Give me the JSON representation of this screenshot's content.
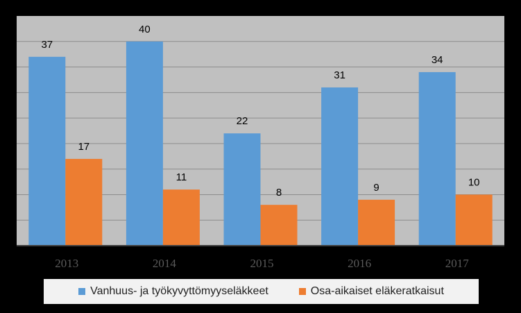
{
  "chart_data": {
    "type": "bar",
    "categories": [
      "2013",
      "2014",
      "2015",
      "2016",
      "2017"
    ],
    "series": [
      {
        "name": "Vanhuus- ja työkyvyttömyyseläkkeet",
        "values": [
          37,
          40,
          22,
          31,
          34
        ],
        "color": "#5b9bd5"
      },
      {
        "name": "Osa-aikaiset eläkeratkaisut",
        "values": [
          17,
          11,
          8,
          9,
          10
        ],
        "color": "#ed7d31"
      }
    ],
    "ylim": [
      0,
      45
    ],
    "grid": true,
    "legend_position": "bottom",
    "data_labels": true,
    "colors": {
      "background": "#000000",
      "plot_area": "#c0c0c0",
      "gridline": "#8c8c8c",
      "axis": "#404040"
    }
  }
}
